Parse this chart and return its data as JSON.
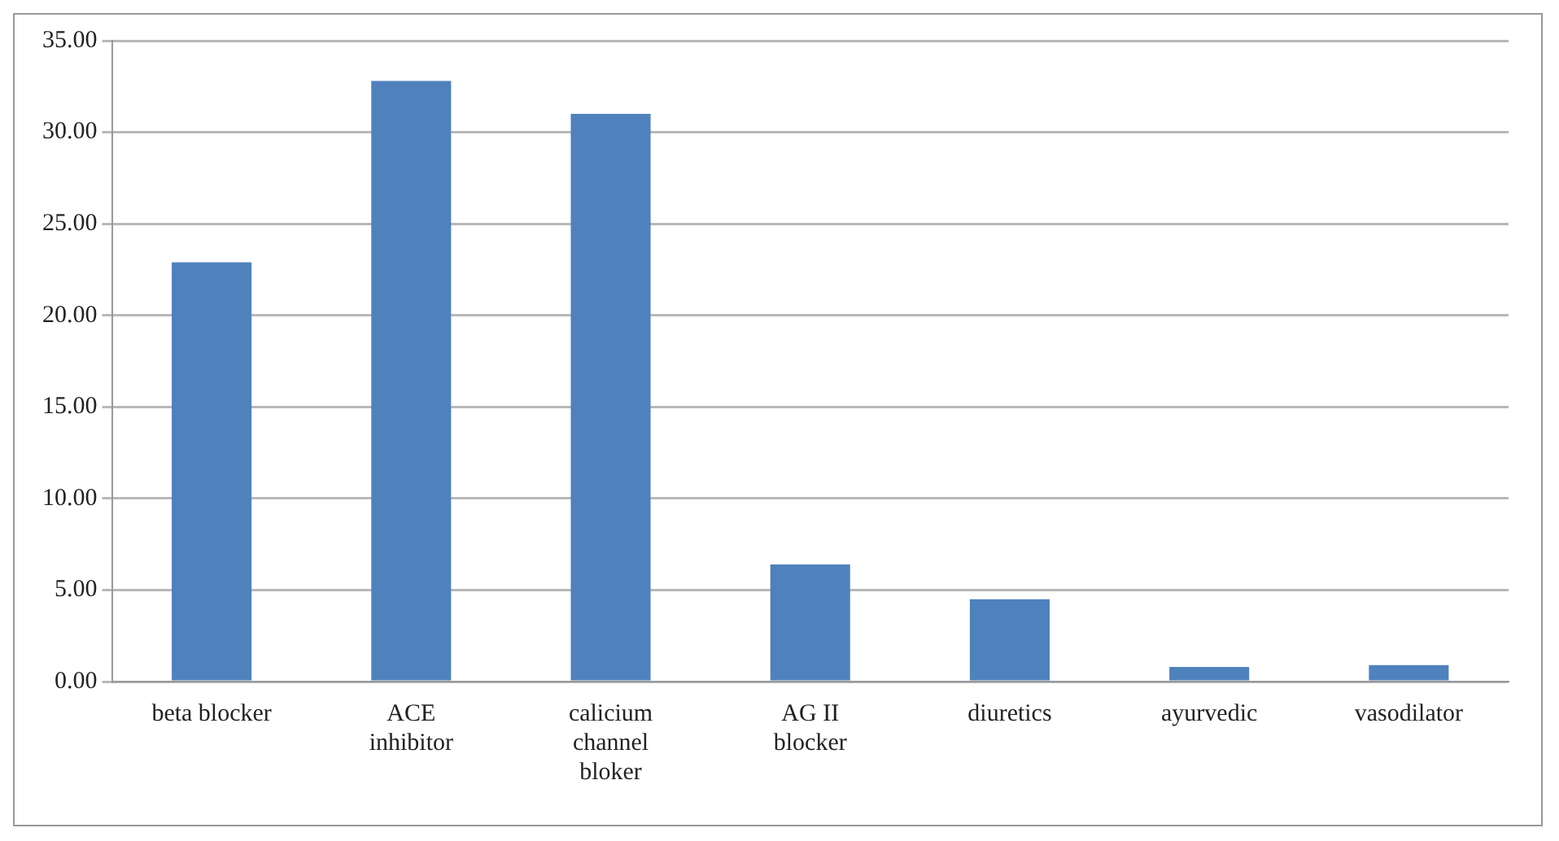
{
  "chart_data": {
    "type": "bar",
    "categories": [
      "beta blocker",
      "ACE inhibitor",
      "calicium channel bloker",
      "AG II blocker",
      "diuretics",
      "ayurvedic",
      "vasodilator"
    ],
    "values": [
      22.9,
      32.8,
      31.0,
      6.4,
      4.5,
      0.8,
      0.9
    ],
    "color": "#4f81bd",
    "ylim": [
      0,
      35
    ],
    "yticks": [
      {
        "value": 0,
        "label": "0.00"
      },
      {
        "value": 5,
        "label": "5.00"
      },
      {
        "value": 10,
        "label": "10.00"
      },
      {
        "value": 15,
        "label": "15.00"
      },
      {
        "value": 20,
        "label": "20.00"
      },
      {
        "value": 25,
        "label": "25.00"
      },
      {
        "value": 30,
        "label": "30.00"
      },
      {
        "value": 35,
        "label": "35.00"
      }
    ],
    "grid": "y",
    "legend": false
  }
}
